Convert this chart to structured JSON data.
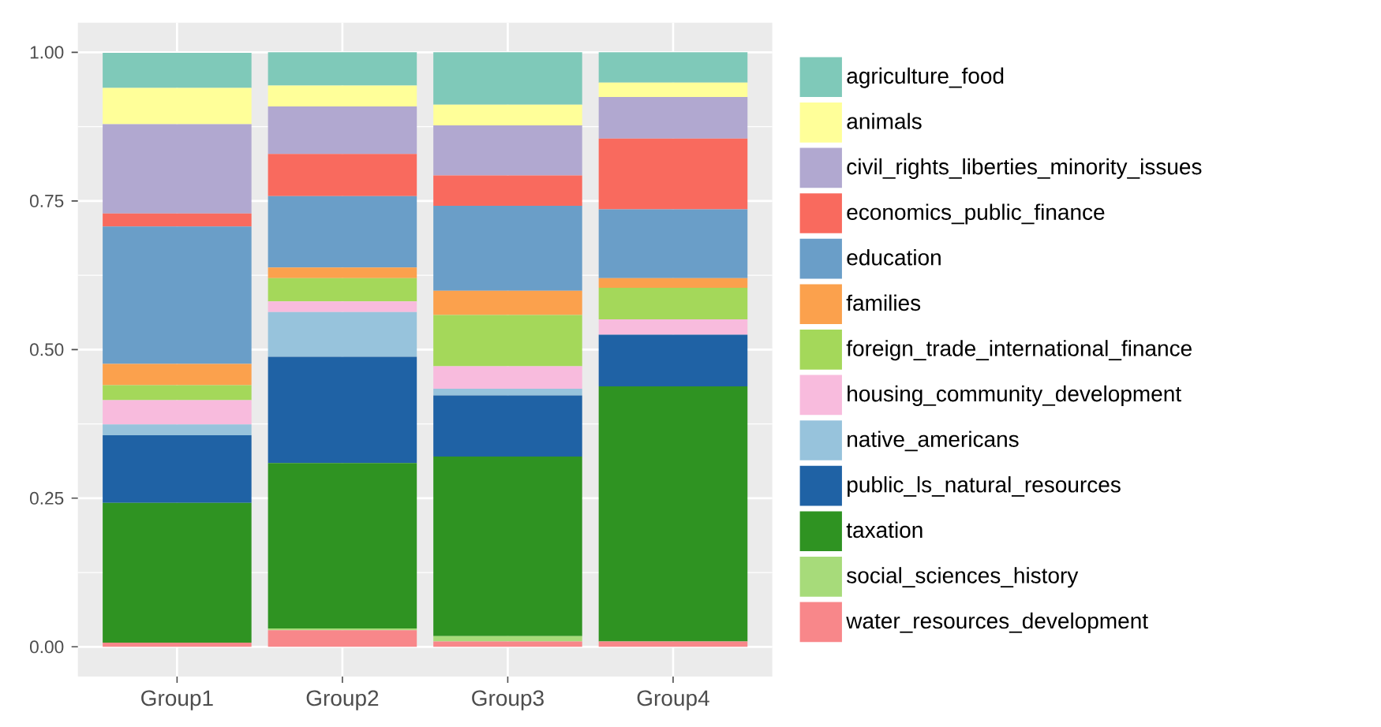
{
  "chart_data": {
    "type": "bar",
    "stacked": true,
    "categories": [
      "Group1",
      "Group2",
      "Group3",
      "Group4"
    ],
    "ylim": [
      -0.05,
      1.05
    ],
    "yticks": [
      {
        "value": 0,
        "label": "0.00"
      },
      {
        "value": 0.25,
        "label": "0.25"
      },
      {
        "value": 0.5,
        "label": "0.50"
      },
      {
        "value": 0.75,
        "label": "0.75"
      },
      {
        "value": 1,
        "label": "1.00"
      }
    ],
    "grid": true,
    "legend": "right",
    "series": [
      {
        "name": "water_resources_development",
        "color": "#f8878a",
        "values": [
          0.007,
          0.028,
          0.009,
          0.009
        ]
      },
      {
        "name": "social_sciences_history",
        "color": "#a7db7a",
        "values": [
          0,
          0.003,
          0.009,
          0
        ]
      },
      {
        "name": "taxation",
        "color": "#2f9322",
        "values": [
          0.235,
          0.278,
          0.302,
          0.429
        ]
      },
      {
        "name": "public_ls_natural_resources",
        "color": "#1f62a5",
        "values": [
          0.114,
          0.179,
          0.103,
          0.087
        ]
      },
      {
        "name": "native_americans",
        "color": "#97c3dc",
        "values": [
          0.018,
          0.075,
          0.011,
          0
        ]
      },
      {
        "name": "housing_community_development",
        "color": "#f8bbdd",
        "values": [
          0.041,
          0.018,
          0.038,
          0.026
        ]
      },
      {
        "name": "foreign_trade_international_finance",
        "color": "#a4d85a",
        "values": [
          0.025,
          0.039,
          0.086,
          0.053
        ]
      },
      {
        "name": "families",
        "color": "#fba14d",
        "values": [
          0.036,
          0.018,
          0.041,
          0.016
        ]
      },
      {
        "name": "education",
        "color": "#6a9ec8",
        "values": [
          0.231,
          0.12,
          0.143,
          0.116
        ]
      },
      {
        "name": "economics_public_finance",
        "color": "#f96a5e",
        "values": [
          0.022,
          0.071,
          0.051,
          0.119
        ]
      },
      {
        "name": "civil_rights_liberties_minority_issues",
        "color": "#b1a8d0",
        "values": [
          0.15,
          0.08,
          0.084,
          0.07
        ]
      },
      {
        "name": "animals",
        "color": "#ffff99",
        "values": [
          0.061,
          0.035,
          0.035,
          0.024
        ]
      },
      {
        "name": "agriculture_food",
        "color": "#7fc9b9",
        "values": [
          0.059,
          0.056,
          0.088,
          0.051
        ]
      }
    ]
  }
}
